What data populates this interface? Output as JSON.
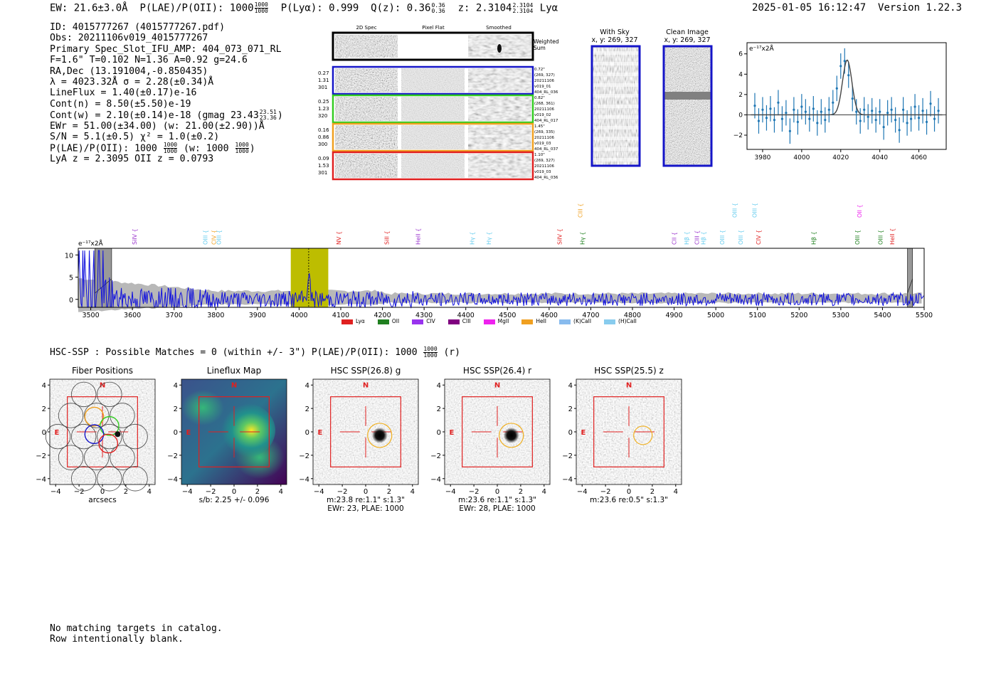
{
  "header": {
    "ew_label": "EW: 21.6±3.0Å",
    "plae_label": "P(LAE)/P(OII): 1000",
    "plae_hi": "1000",
    "plae_lo": "1000",
    "plya_label": "P(Lyα): 0.999",
    "qz_label": "Q(z): 0.36",
    "qz_hi": "0.36",
    "qz_lo": "0.36",
    "z_label": "z: 2.3104",
    "z_hi": "2.3104",
    "z_lo": "2.3104",
    "z_line": "Lyα",
    "timestamp": "2025-01-05 16:12:47",
    "version": "Version 1.22.3"
  },
  "info": {
    "id": "ID: 4015777267 (4015777267.pdf)",
    "obs": "Obs: 20211106v019_4015777267",
    "primary": "Primary Spec_Slot_IFU_AMP: 404_073_071_RL",
    "params": "F=1.6\"  T=0.102  N=1.36  A=0.92  g=24.6",
    "radec": "RA,Dec (13.191004,-0.850435)",
    "lambda": "λ = 4023.32Å   σ = 2.28(±0.34)Å",
    "lineflux": "LineFlux = 1.40(±0.17)e-16",
    "contn": "Cont(n) = 8.50(±5.50)e-19",
    "contw": "Cont(w) = 2.10(±0.14)e-18 (gmag 23.43",
    "gmag_hi": "23.51",
    "gmag_lo": "23.36",
    "ewr": "EWr = 51.00(±34.00) (w: 21.00(±2.90))Å",
    "sn": "S/N = 5.1(±0.5)  χ² = 1.0(±0.2)",
    "plae": "P(LAE)/P(OII): 1000",
    "plae_hi": "1000",
    "plae_lo": "1000",
    "plae_w": "(w: 1000",
    "plae_w_hi": "1000",
    "plae_w_lo": "1000",
    "lya": "LyA z = 2.3095   OII z = 0.0793"
  },
  "cutouts": {
    "col_2d": "2D Spec",
    "col_flat": "Pixel Flat",
    "col_smooth": "Smoothed",
    "weighted": "Weighted",
    "sum": "Sum",
    "rows": [
      {
        "l1": "0.27",
        "l2": "1.31",
        "l3": "301",
        "r1": "0.72\"",
        "r2": "(269, 327)",
        "r3": "20211106",
        "r4": "v019_01",
        "r5": "404_RL_036",
        "color": "#1515c8"
      },
      {
        "l1": "0.25",
        "l2": "1.23",
        "l3": "320",
        "r1": "0.82\"",
        "r2": "(268, 361)",
        "r3": "20211106",
        "r4": "v019_02",
        "r5": "404_RL_017",
        "color": "#33cc22"
      },
      {
        "l1": "0.16",
        "l2": "0.86",
        "l3": "300",
        "r1": "1.45\"",
        "r2": "(269, 335)",
        "r3": "20211106",
        "r4": "v019_03",
        "r5": "404_RL_037",
        "color": "#f0a020"
      },
      {
        "l1": "0.09",
        "l2": "1.53",
        "l3": "301",
        "r1": "1.10\"",
        "r2": "(269, 327)",
        "r3": "20211106",
        "r4": "v019_03",
        "r5": "404_RL_036",
        "color": "#e02020"
      }
    ]
  },
  "sky": {
    "with_sky": "With Sky",
    "with_sky_xy": "x, y: 269, 327",
    "clean": "Clean Image",
    "clean_xy": "x, y: 269, 327"
  },
  "zoom_chart_data": {
    "type": "scatter",
    "title": "e⁻¹⁷x2Å",
    "xlim": [
      3972,
      4074
    ],
    "ylim": [
      -3.4,
      7.1
    ],
    "xticks": [
      "3980",
      "4000",
      "4020",
      "4040",
      "4060"
    ],
    "yticks": [
      "6",
      "4",
      "2",
      "0",
      "−2"
    ],
    "x": [
      3976,
      3978,
      3980,
      3982,
      3984,
      3986,
      3988,
      3990,
      3992,
      3994,
      3996,
      3998,
      4000,
      4002,
      4004,
      4006,
      4008,
      4010,
      4012,
      4014,
      4016,
      4018,
      4020,
      4022,
      4024,
      4026,
      4028,
      4030,
      4032,
      4034,
      4036,
      4038,
      4040,
      4042,
      4044,
      4046,
      4048,
      4050,
      4052,
      4054,
      4056,
      4058,
      4060,
      4062,
      4064,
      4066,
      4068,
      4070
    ],
    "y": [
      0.9,
      -0.6,
      0.5,
      -0.3,
      0.6,
      -0.5,
      1.2,
      -0.4,
      0.2,
      -1.6,
      0.5,
      -0.7,
      0.8,
      0.3,
      -0.4,
      0.6,
      -0.8,
      0.3,
      -0.5,
      0.5,
      1.2,
      2.6,
      4.8,
      5.3,
      3.9,
      1.6,
      0.3,
      -0.6,
      0.5,
      -0.2,
      0.4,
      -0.5,
      0.3,
      -1.2,
      0.2,
      0.5,
      -0.5,
      -1.5,
      0.5,
      -0.8,
      -0.4,
      0.8,
      -0.3,
      0.4,
      -0.7,
      1.1,
      -0.4,
      0.4
    ],
    "err": 1.25,
    "fit_center": 4023.3,
    "fit_sigma": 2.4,
    "fit_amp": 5.4
  },
  "spectrum_chart_data": {
    "type": "line",
    "title": "e⁻¹⁷x2Å",
    "xlim": [
      3470,
      5500
    ],
    "ylim": [
      -1.8,
      11.5
    ],
    "xticks": [
      "3500",
      "3600",
      "3700",
      "3800",
      "3900",
      "4000",
      "4100",
      "4200",
      "4300",
      "4400",
      "4500",
      "4600",
      "4700",
      "4800",
      "4900",
      "5000",
      "5100",
      "5200",
      "5300",
      "5400",
      "5500"
    ],
    "yticks": [
      "10",
      "5",
      "0"
    ],
    "highlight": [
      3980,
      4070
    ],
    "peak": 4023,
    "mask_left": [
      3510,
      3550
    ],
    "mask_right": [
      5460,
      5472
    ],
    "line_labels": [
      {
        "name": "SiIV",
        "w": 3610,
        "color": "#9933cc",
        "tier": 0
      },
      {
        "name": "OIII",
        "w": 3780,
        "color": "#66ccee",
        "tier": 0
      },
      {
        "name": "CIV",
        "w": 3800,
        "color": "#f0a020",
        "tier": 0
      },
      {
        "name": "OIII",
        "w": 3812,
        "color": "#66ccee",
        "tier": 0
      },
      {
        "name": "NV",
        "w": 4100,
        "color": "#e02020",
        "tier": 0
      },
      {
        "name": "SiII",
        "w": 4215,
        "color": "#e02020",
        "tier": 0
      },
      {
        "name": "HeII",
        "w": 4290,
        "color": "#9933cc",
        "tier": 0
      },
      {
        "name": "Hγ",
        "w": 4420,
        "color": "#66ccee",
        "tier": 0
      },
      {
        "name": "Hγ",
        "w": 4460,
        "color": "#66ccee",
        "tier": 0
      },
      {
        "name": "SiIV",
        "w": 4630,
        "color": "#e02020",
        "tier": 0
      },
      {
        "name": "CIII",
        "w": 4680,
        "color": "#f0a020",
        "tier": 1
      },
      {
        "name": "Hγ",
        "w": 4685,
        "color": "#208020",
        "tier": 0
      },
      {
        "name": "CII",
        "w": 4905,
        "color": "#9933cc",
        "tier": 0
      },
      {
        "name": "Hβ",
        "w": 4935,
        "color": "#66ccee",
        "tier": 0
      },
      {
        "name": "CIII",
        "w": 4960,
        "color": "#9933cc",
        "tier": 0
      },
      {
        "name": "Hβ",
        "w": 4975,
        "color": "#66ccee",
        "tier": 0
      },
      {
        "name": "OIII",
        "w": 5020,
        "color": "#66ccee",
        "tier": 0
      },
      {
        "name": "OIII",
        "w": 5050,
        "color": "#66ccee",
        "tier": 1
      },
      {
        "name": "OIII",
        "w": 5065,
        "color": "#66ccee",
        "tier": 0
      },
      {
        "name": "OIII",
        "w": 5098,
        "color": "#66ccee",
        "tier": 1
      },
      {
        "name": "CIV",
        "w": 5107,
        "color": "#e02020",
        "tier": 0
      },
      {
        "name": "Hβ",
        "w": 5240,
        "color": "#208020",
        "tier": 0
      },
      {
        "name": "OIII",
        "w": 5345,
        "color": "#208020",
        "tier": 0
      },
      {
        "name": "OII",
        "w": 5350,
        "color": "#ee22ee",
        "tier": 1
      },
      {
        "name": "OIII",
        "w": 5400,
        "color": "#208020",
        "tier": 0
      },
      {
        "name": "HeII",
        "w": 5428,
        "color": "#e02020",
        "tier": 0
      }
    ],
    "legend": [
      {
        "name": "Lyα",
        "color": "#e02020"
      },
      {
        "name": "OII",
        "color": "#208020"
      },
      {
        "name": "CIV",
        "color": "#9933ee"
      },
      {
        "name": "CIII",
        "color": "#800080"
      },
      {
        "name": "MgII",
        "color": "#ee22ee"
      },
      {
        "name": "HeII",
        "color": "#f0a020"
      },
      {
        "name": "(K)CaII",
        "color": "#88bbee"
      },
      {
        "name": "(H)CaII",
        "color": "#88ccee"
      }
    ]
  },
  "hsc": {
    "line": "HSC-SSP : Possible Matches = 0 (within +/- 3\")  P(LAE)/P(OII): 1000",
    "hi": "1000",
    "lo": "1000",
    "suffix": "(r)",
    "axis_ticks": [
      "−4",
      "−2",
      "0",
      "2",
      "4"
    ],
    "y_ticks": [
      "4",
      "2",
      "0",
      "−2",
      "−4"
    ],
    "north": "N",
    "east": "E",
    "panels": [
      {
        "title": "Fiber Positions",
        "cap1": "arcsecs",
        "cap2": "",
        "kind": "fibers"
      },
      {
        "title": "Lineflux Map",
        "cap1": "s/b: 2.25 +/- 0.096",
        "cap2": "",
        "kind": "flux"
      },
      {
        "title": "HSC SSP(26.8) g",
        "cap1": "m:23.8  re:1.1\"  s:1.3\"",
        "cap2": "EWr: 23, PLAE: 1000",
        "kind": "img",
        "r": 17,
        "blob": 1
      },
      {
        "title": "HSC SSP(26.4) r",
        "cap1": "m:23.6  re:1.1\"  s:1.3\"",
        "cap2": "EWr: 28, PLAE: 1000",
        "kind": "img",
        "r": 17,
        "blob": 1
      },
      {
        "title": "HSC SSP(25.5) z",
        "cap1": "m:23.6  re:0.5\"  s:1.3\"",
        "cap2": "",
        "kind": "img",
        "r": 13,
        "blob": 0
      }
    ]
  },
  "footer": {
    "line1": "No matching targets in catalog.",
    "line2": "Row intentionally blank."
  }
}
